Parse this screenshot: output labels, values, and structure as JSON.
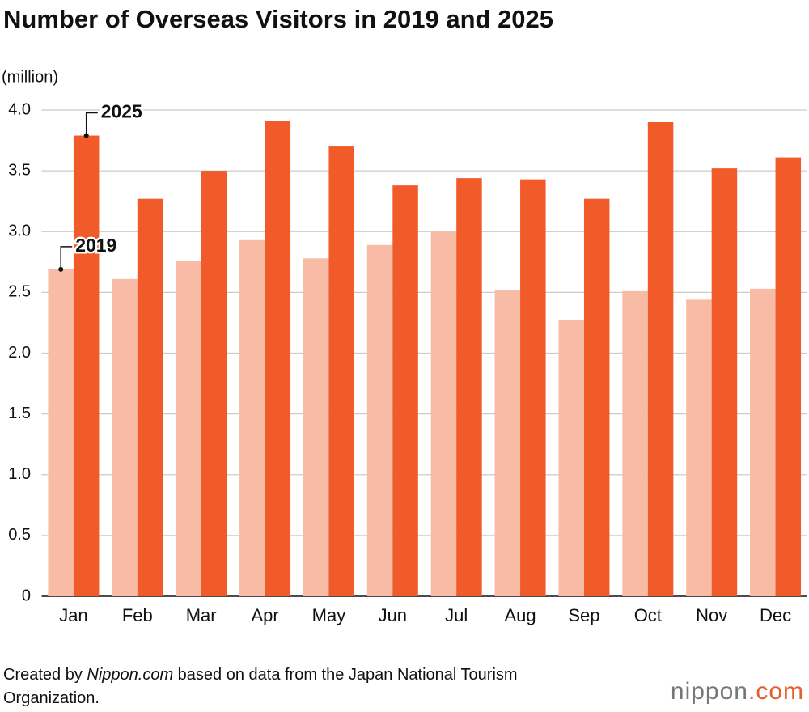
{
  "chart_data": {
    "type": "bar",
    "title": "Number of Overseas Visitors in 2019 and 2025",
    "y_label": "(million)",
    "categories": [
      "Jan",
      "Feb",
      "Mar",
      "Apr",
      "May",
      "Jun",
      "Jul",
      "Aug",
      "Sep",
      "Oct",
      "Nov",
      "Dec"
    ],
    "series": [
      {
        "name": "2019",
        "color": "#f8bba5",
        "values": [
          2.69,
          2.61,
          2.76,
          2.93,
          2.78,
          2.89,
          3.0,
          2.52,
          2.27,
          2.51,
          2.44,
          2.53
        ]
      },
      {
        "name": "2025",
        "color": "#f15a29",
        "values": [
          3.79,
          3.27,
          3.5,
          3.91,
          3.7,
          3.38,
          3.44,
          3.43,
          3.27,
          3.9,
          3.52,
          3.61
        ]
      }
    ],
    "ylim": [
      0,
      4
    ],
    "yticks": [
      0,
      0.5,
      {
        "value": 1,
        "label": "1.0"
      },
      1.5,
      {
        "value": 2,
        "label": "2.0"
      },
      2.5,
      {
        "value": 3,
        "label": "3.0"
      },
      3.5,
      {
        "value": 4,
        "label": "4.0"
      }
    ],
    "grid": true,
    "source": {
      "prefix": "Created by ",
      "italic": "Nippon.com",
      "suffix": " based on data from the Japan National Tourism Organization."
    },
    "logo": {
      "name": "nippon",
      "suffix": ".com"
    }
  }
}
